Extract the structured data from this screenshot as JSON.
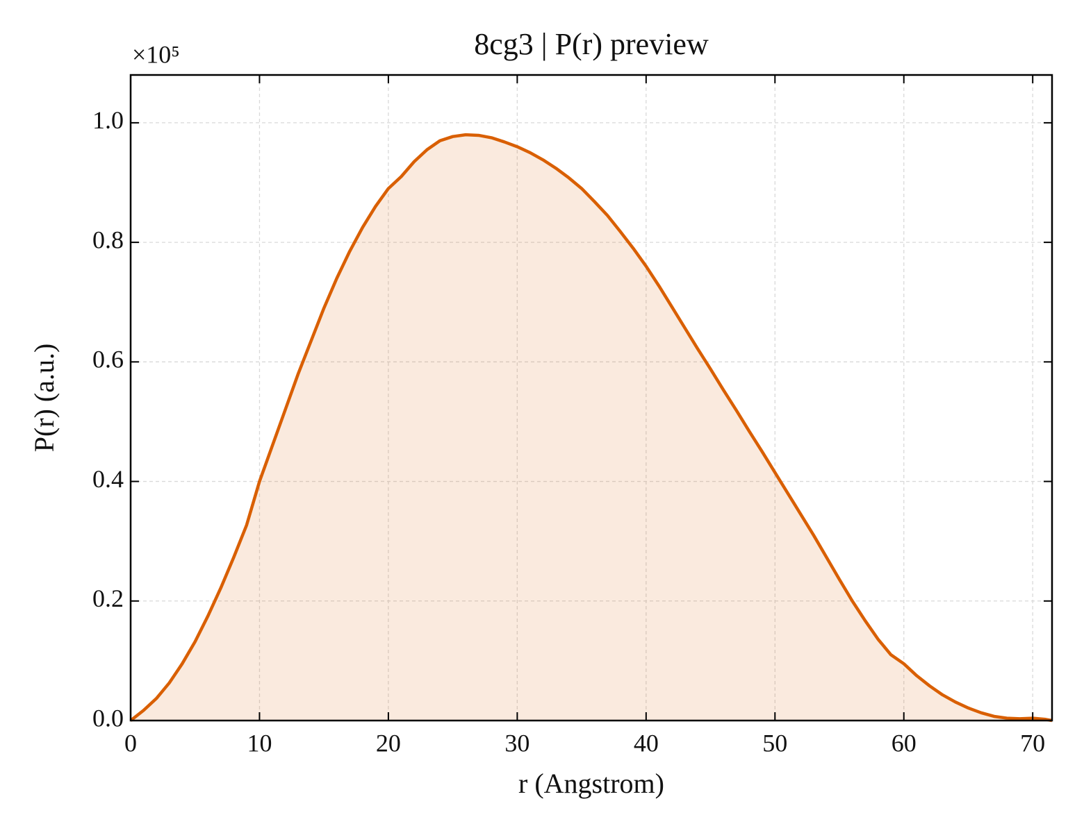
{
  "chart_data": {
    "type": "line",
    "title": "8cg3 | P(r) preview",
    "xlabel": "r (Angstrom)",
    "ylabel": "P(r) (a.u.)",
    "y_offset_label": "×10⁵",
    "x": [
      0,
      1,
      2,
      3,
      4,
      5,
      6,
      7,
      8,
      9,
      10,
      11,
      12,
      13,
      14,
      15,
      16,
      17,
      18,
      19,
      20,
      21,
      22,
      23,
      24,
      25,
      26,
      27,
      28,
      29,
      30,
      31,
      32,
      33,
      34,
      35,
      36,
      37,
      38,
      39,
      40,
      41,
      42,
      43,
      44,
      45,
      46,
      47,
      48,
      49,
      50,
      51,
      52,
      53,
      54,
      55,
      56,
      57,
      58,
      59,
      60,
      61,
      62,
      63,
      64,
      65,
      66,
      67,
      68,
      69,
      70,
      71,
      71.5
    ],
    "series": [
      {
        "name": "P(r)",
        "color": "#d95f02",
        "fill": true,
        "values": [
          0,
          0.017,
          0.037,
          0.063,
          0.095,
          0.132,
          0.175,
          0.222,
          0.273,
          0.327,
          0.4,
          0.46,
          0.52,
          0.58,
          0.635,
          0.69,
          0.74,
          0.785,
          0.825,
          0.86,
          0.89,
          0.91,
          0.935,
          0.955,
          0.97,
          0.977,
          0.98,
          0.979,
          0.975,
          0.968,
          0.96,
          0.95,
          0.938,
          0.924,
          0.908,
          0.89,
          0.868,
          0.845,
          0.818,
          0.79,
          0.76,
          0.727,
          0.692,
          0.657,
          0.622,
          0.588,
          0.553,
          0.519,
          0.484,
          0.45,
          0.415,
          0.38,
          0.345,
          0.31,
          0.273,
          0.236,
          0.2,
          0.167,
          0.136,
          0.11,
          0.095,
          0.075,
          0.058,
          0.043,
          0.031,
          0.021,
          0.013,
          0.007,
          0.004,
          0.003,
          0.004,
          0.002,
          0
        ]
      }
    ],
    "xlim": [
      0,
      71.5
    ],
    "ylim": [
      0,
      1.08
    ],
    "xticks": [
      0,
      10,
      20,
      30,
      40,
      50,
      60,
      70
    ],
    "yticks": [
      {
        "value": 0,
        "label": "0.0"
      },
      0.2,
      0.4,
      0.6,
      0.8,
      {
        "value": 1,
        "label": "1.0"
      }
    ],
    "grid": true
  }
}
